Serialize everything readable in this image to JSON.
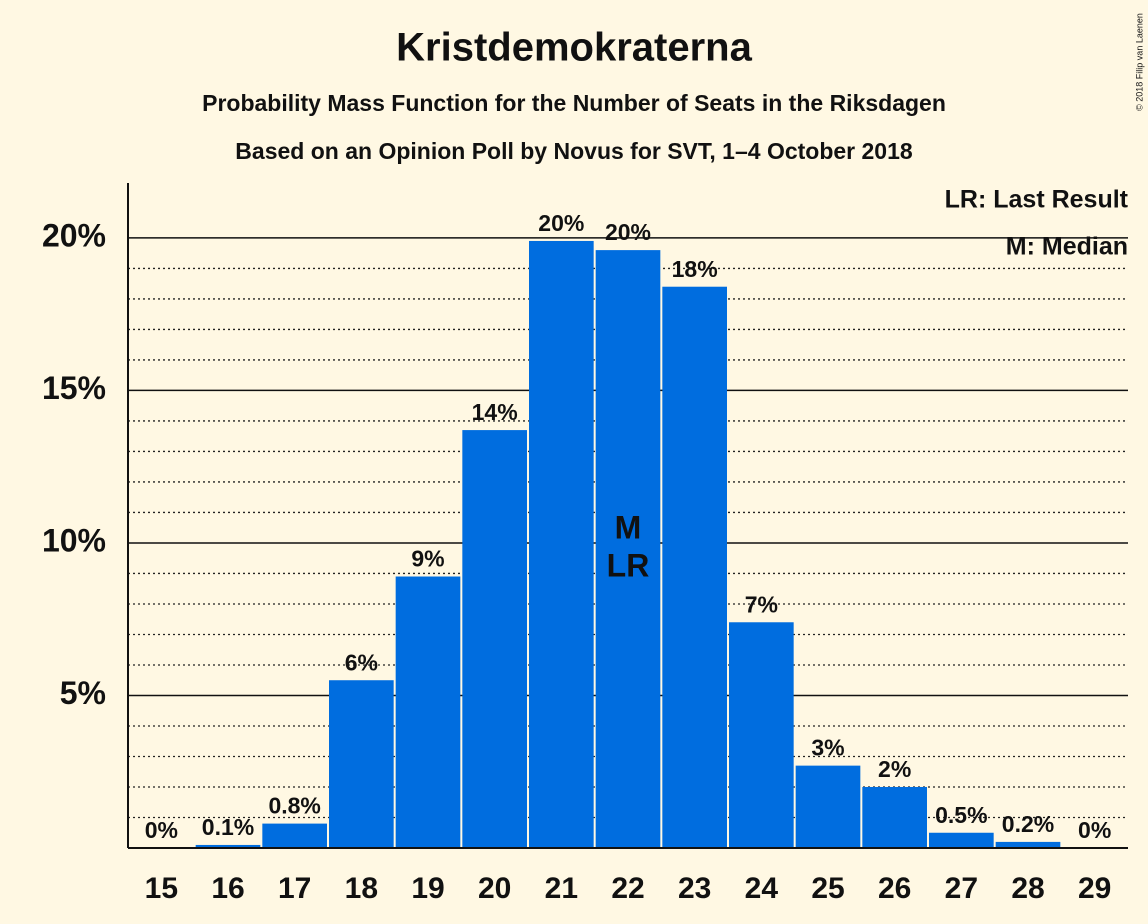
{
  "chart_data": {
    "type": "bar",
    "title": "Kristdemokraterna",
    "subtitle": "Probability Mass Function for the Number of Seats in the Riksdagen",
    "subtitle2": "Based on an Opinion Poll by Novus for SVT, 1–4 October 2018",
    "copyright": "© 2018 Filip van Laenen",
    "legend": [
      "LR: Last Result",
      "M: Median"
    ],
    "categories": [
      "15",
      "16",
      "17",
      "18",
      "19",
      "20",
      "21",
      "22",
      "23",
      "24",
      "25",
      "26",
      "27",
      "28",
      "29"
    ],
    "values": [
      0,
      0.1,
      0.8,
      5.5,
      8.9,
      13.7,
      19.9,
      19.6,
      18.4,
      7.4,
      2.7,
      2.0,
      0.5,
      0.2,
      0
    ],
    "value_labels": [
      "0%",
      "0.1%",
      "0.8%",
      "6%",
      "9%",
      "14%",
      "20%",
      "20%",
      "18%",
      "7%",
      "3%",
      "2%",
      "0.5%",
      "0.2%",
      "0%"
    ],
    "annotations": [
      {
        "category": "22",
        "labels": [
          "M",
          "LR"
        ]
      }
    ],
    "color": "#006ddf",
    "ylim": [
      0,
      21.8
    ],
    "yticks": [
      {
        "value": 5,
        "label": "5%"
      },
      {
        "value": 10,
        "label": "10%"
      },
      {
        "value": 15,
        "label": "15%"
      },
      {
        "value": 20,
        "label": "20%"
      }
    ],
    "minor_yticks": [
      1,
      2,
      3,
      4,
      6,
      7,
      8,
      9,
      11,
      12,
      13,
      14,
      16,
      17,
      18,
      19
    ],
    "grid": true
  }
}
